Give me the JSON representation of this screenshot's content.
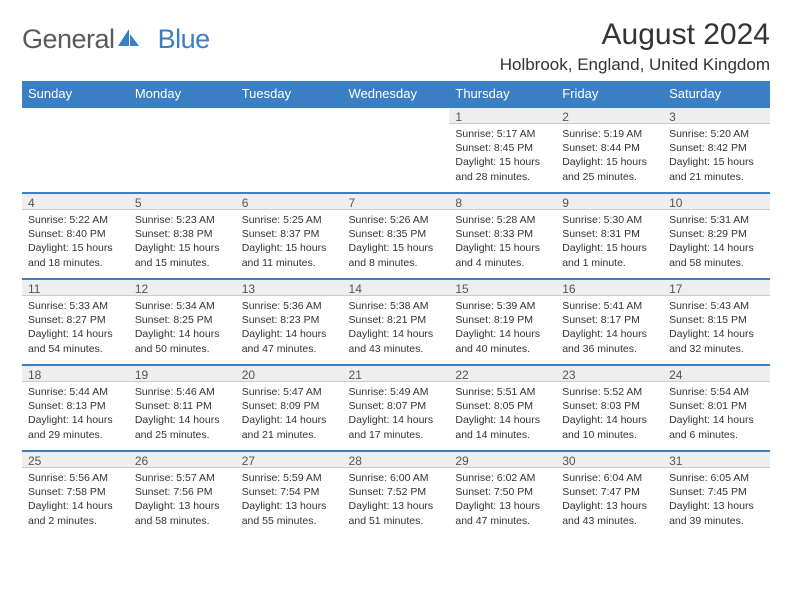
{
  "logo": {
    "text1": "General",
    "text2": "Blue"
  },
  "title": "August 2024",
  "location": "Holbrook, England, United Kingdom",
  "colors": {
    "header_bg": "#3a7fc4",
    "header_text": "#ffffff",
    "daynum_bg": "#eeeeee",
    "daynum_border_top": "#3a7fc4",
    "body_text": "#333333"
  },
  "day_headers": [
    "Sunday",
    "Monday",
    "Tuesday",
    "Wednesday",
    "Thursday",
    "Friday",
    "Saturday"
  ],
  "weeks": [
    [
      {
        "num": "",
        "sunrise": "",
        "sunset": "",
        "daylight": ""
      },
      {
        "num": "",
        "sunrise": "",
        "sunset": "",
        "daylight": ""
      },
      {
        "num": "",
        "sunrise": "",
        "sunset": "",
        "daylight": ""
      },
      {
        "num": "",
        "sunrise": "",
        "sunset": "",
        "daylight": ""
      },
      {
        "num": "1",
        "sunrise": "Sunrise: 5:17 AM",
        "sunset": "Sunset: 8:45 PM",
        "daylight": "Daylight: 15 hours and 28 minutes."
      },
      {
        "num": "2",
        "sunrise": "Sunrise: 5:19 AM",
        "sunset": "Sunset: 8:44 PM",
        "daylight": "Daylight: 15 hours and 25 minutes."
      },
      {
        "num": "3",
        "sunrise": "Sunrise: 5:20 AM",
        "sunset": "Sunset: 8:42 PM",
        "daylight": "Daylight: 15 hours and 21 minutes."
      }
    ],
    [
      {
        "num": "4",
        "sunrise": "Sunrise: 5:22 AM",
        "sunset": "Sunset: 8:40 PM",
        "daylight": "Daylight: 15 hours and 18 minutes."
      },
      {
        "num": "5",
        "sunrise": "Sunrise: 5:23 AM",
        "sunset": "Sunset: 8:38 PM",
        "daylight": "Daylight: 15 hours and 15 minutes."
      },
      {
        "num": "6",
        "sunrise": "Sunrise: 5:25 AM",
        "sunset": "Sunset: 8:37 PM",
        "daylight": "Daylight: 15 hours and 11 minutes."
      },
      {
        "num": "7",
        "sunrise": "Sunrise: 5:26 AM",
        "sunset": "Sunset: 8:35 PM",
        "daylight": "Daylight: 15 hours and 8 minutes."
      },
      {
        "num": "8",
        "sunrise": "Sunrise: 5:28 AM",
        "sunset": "Sunset: 8:33 PM",
        "daylight": "Daylight: 15 hours and 4 minutes."
      },
      {
        "num": "9",
        "sunrise": "Sunrise: 5:30 AM",
        "sunset": "Sunset: 8:31 PM",
        "daylight": "Daylight: 15 hours and 1 minute."
      },
      {
        "num": "10",
        "sunrise": "Sunrise: 5:31 AM",
        "sunset": "Sunset: 8:29 PM",
        "daylight": "Daylight: 14 hours and 58 minutes."
      }
    ],
    [
      {
        "num": "11",
        "sunrise": "Sunrise: 5:33 AM",
        "sunset": "Sunset: 8:27 PM",
        "daylight": "Daylight: 14 hours and 54 minutes."
      },
      {
        "num": "12",
        "sunrise": "Sunrise: 5:34 AM",
        "sunset": "Sunset: 8:25 PM",
        "daylight": "Daylight: 14 hours and 50 minutes."
      },
      {
        "num": "13",
        "sunrise": "Sunrise: 5:36 AM",
        "sunset": "Sunset: 8:23 PM",
        "daylight": "Daylight: 14 hours and 47 minutes."
      },
      {
        "num": "14",
        "sunrise": "Sunrise: 5:38 AM",
        "sunset": "Sunset: 8:21 PM",
        "daylight": "Daylight: 14 hours and 43 minutes."
      },
      {
        "num": "15",
        "sunrise": "Sunrise: 5:39 AM",
        "sunset": "Sunset: 8:19 PM",
        "daylight": "Daylight: 14 hours and 40 minutes."
      },
      {
        "num": "16",
        "sunrise": "Sunrise: 5:41 AM",
        "sunset": "Sunset: 8:17 PM",
        "daylight": "Daylight: 14 hours and 36 minutes."
      },
      {
        "num": "17",
        "sunrise": "Sunrise: 5:43 AM",
        "sunset": "Sunset: 8:15 PM",
        "daylight": "Daylight: 14 hours and 32 minutes."
      }
    ],
    [
      {
        "num": "18",
        "sunrise": "Sunrise: 5:44 AM",
        "sunset": "Sunset: 8:13 PM",
        "daylight": "Daylight: 14 hours and 29 minutes."
      },
      {
        "num": "19",
        "sunrise": "Sunrise: 5:46 AM",
        "sunset": "Sunset: 8:11 PM",
        "daylight": "Daylight: 14 hours and 25 minutes."
      },
      {
        "num": "20",
        "sunrise": "Sunrise: 5:47 AM",
        "sunset": "Sunset: 8:09 PM",
        "daylight": "Daylight: 14 hours and 21 minutes."
      },
      {
        "num": "21",
        "sunrise": "Sunrise: 5:49 AM",
        "sunset": "Sunset: 8:07 PM",
        "daylight": "Daylight: 14 hours and 17 minutes."
      },
      {
        "num": "22",
        "sunrise": "Sunrise: 5:51 AM",
        "sunset": "Sunset: 8:05 PM",
        "daylight": "Daylight: 14 hours and 14 minutes."
      },
      {
        "num": "23",
        "sunrise": "Sunrise: 5:52 AM",
        "sunset": "Sunset: 8:03 PM",
        "daylight": "Daylight: 14 hours and 10 minutes."
      },
      {
        "num": "24",
        "sunrise": "Sunrise: 5:54 AM",
        "sunset": "Sunset: 8:01 PM",
        "daylight": "Daylight: 14 hours and 6 minutes."
      }
    ],
    [
      {
        "num": "25",
        "sunrise": "Sunrise: 5:56 AM",
        "sunset": "Sunset: 7:58 PM",
        "daylight": "Daylight: 14 hours and 2 minutes."
      },
      {
        "num": "26",
        "sunrise": "Sunrise: 5:57 AM",
        "sunset": "Sunset: 7:56 PM",
        "daylight": "Daylight: 13 hours and 58 minutes."
      },
      {
        "num": "27",
        "sunrise": "Sunrise: 5:59 AM",
        "sunset": "Sunset: 7:54 PM",
        "daylight": "Daylight: 13 hours and 55 minutes."
      },
      {
        "num": "28",
        "sunrise": "Sunrise: 6:00 AM",
        "sunset": "Sunset: 7:52 PM",
        "daylight": "Daylight: 13 hours and 51 minutes."
      },
      {
        "num": "29",
        "sunrise": "Sunrise: 6:02 AM",
        "sunset": "Sunset: 7:50 PM",
        "daylight": "Daylight: 13 hours and 47 minutes."
      },
      {
        "num": "30",
        "sunrise": "Sunrise: 6:04 AM",
        "sunset": "Sunset: 7:47 PM",
        "daylight": "Daylight: 13 hours and 43 minutes."
      },
      {
        "num": "31",
        "sunrise": "Sunrise: 6:05 AM",
        "sunset": "Sunset: 7:45 PM",
        "daylight": "Daylight: 13 hours and 39 minutes."
      }
    ]
  ]
}
